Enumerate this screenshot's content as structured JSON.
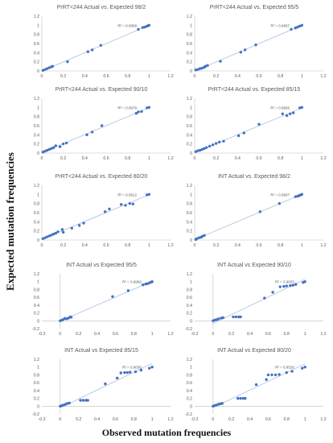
{
  "figure": {
    "ylabel": "Expected mutation frequencies",
    "xlabel": "Observed mutation frequencies"
  },
  "chart_data": [
    {
      "type": "scatter",
      "title": "PrRT<244 Actual vs. Expected 98/2",
      "xlim": [
        0,
        1.2
      ],
      "ylim": [
        0,
        1.2
      ],
      "xticks": [
        "0",
        "0.2",
        "0.4",
        "0.6",
        "0.8",
        "1",
        "1.2"
      ],
      "yticks": [
        "0",
        "0.2",
        "0.4",
        "0.6",
        "0.8",
        "1",
        "1.2"
      ],
      "r2_label": "R² = 0.9999",
      "points": [
        [
          0.01,
          0.01
        ],
        [
          0.03,
          0.03
        ],
        [
          0.05,
          0.05
        ],
        [
          0.07,
          0.07
        ],
        [
          0.09,
          0.09
        ],
        [
          0.1,
          0.1
        ],
        [
          0.24,
          0.2
        ],
        [
          0.43,
          0.42
        ],
        [
          0.47,
          0.46
        ],
        [
          0.55,
          0.56
        ],
        [
          0.9,
          0.91
        ],
        [
          0.94,
          0.95
        ],
        [
          0.96,
          0.96
        ],
        [
          0.98,
          0.98
        ],
        [
          0.99,
          0.99
        ],
        [
          1.0,
          1.0
        ]
      ]
    },
    {
      "type": "scatter",
      "title": "PrRT<244 Actual vs. Expected 95/5",
      "xlim": [
        0,
        1.2
      ],
      "ylim": [
        0,
        1.2
      ],
      "xticks": [
        "0",
        "0.2",
        "0.4",
        "0.6",
        "0.8",
        "1",
        "1.2"
      ],
      "yticks": [
        "0",
        "0.2",
        "0.4",
        "0.6",
        "0.8",
        "1",
        "1.2"
      ],
      "r2_label": "R² = 0.9997",
      "points": [
        [
          0.01,
          0.02
        ],
        [
          0.03,
          0.03
        ],
        [
          0.05,
          0.05
        ],
        [
          0.07,
          0.06
        ],
        [
          0.09,
          0.08
        ],
        [
          0.1,
          0.1
        ],
        [
          0.12,
          0.12
        ],
        [
          0.24,
          0.21
        ],
        [
          0.43,
          0.41
        ],
        [
          0.47,
          0.46
        ],
        [
          0.57,
          0.57
        ],
        [
          0.9,
          0.91
        ],
        [
          0.94,
          0.94
        ],
        [
          0.96,
          0.96
        ],
        [
          0.98,
          0.98
        ],
        [
          1.0,
          1.0
        ]
      ]
    },
    {
      "type": "scatter",
      "title": "PrRT<244 Actual vs. Expected 90/10",
      "xlim": [
        0,
        1.2
      ],
      "ylim": [
        0,
        1.2
      ],
      "xticks": [
        "0",
        "0.2",
        "0.4",
        "0.6",
        "0.8",
        "1",
        "1.2"
      ],
      "yticks": [
        "0",
        "0.2",
        "0.4",
        "0.6",
        "0.8",
        "1",
        "1.2"
      ],
      "r2_label": "R² = 0.9979",
      "points": [
        [
          0.01,
          0.02
        ],
        [
          0.03,
          0.04
        ],
        [
          0.05,
          0.06
        ],
        [
          0.07,
          0.08
        ],
        [
          0.09,
          0.1
        ],
        [
          0.11,
          0.12
        ],
        [
          0.13,
          0.16
        ],
        [
          0.17,
          0.14
        ],
        [
          0.2,
          0.2
        ],
        [
          0.23,
          0.22
        ],
        [
          0.42,
          0.4
        ],
        [
          0.47,
          0.46
        ],
        [
          0.56,
          0.6
        ],
        [
          0.88,
          0.87
        ],
        [
          0.9,
          0.9
        ],
        [
          0.93,
          0.91
        ],
        [
          0.98,
          0.99
        ],
        [
          1.0,
          1.0
        ]
      ]
    },
    {
      "type": "scatter",
      "title": "PrRT<244 Actual vs. Expected 85/15",
      "xlim": [
        0,
        1.2
      ],
      "ylim": [
        0,
        1.2
      ],
      "xticks": [
        "0",
        "0.2",
        "0.4",
        "0.6",
        "0.8",
        "1",
        "1.2"
      ],
      "yticks": [
        "0",
        "0.2",
        "0.4",
        "0.6",
        "0.8",
        "1",
        "1.2"
      ],
      "r2_label": "R² = 0.9956",
      "points": [
        [
          0.01,
          0.03
        ],
        [
          0.03,
          0.05
        ],
        [
          0.05,
          0.06
        ],
        [
          0.07,
          0.08
        ],
        [
          0.09,
          0.1
        ],
        [
          0.11,
          0.12
        ],
        [
          0.14,
          0.15
        ],
        [
          0.17,
          0.18
        ],
        [
          0.2,
          0.21
        ],
        [
          0.23,
          0.24
        ],
        [
          0.27,
          0.26
        ],
        [
          0.41,
          0.38
        ],
        [
          0.46,
          0.44
        ],
        [
          0.6,
          0.63
        ],
        [
          0.82,
          0.86
        ],
        [
          0.86,
          0.82
        ],
        [
          0.89,
          0.86
        ],
        [
          0.92,
          0.88
        ],
        [
          0.98,
          0.99
        ],
        [
          1.0,
          1.0
        ]
      ]
    },
    {
      "type": "scatter",
      "title": "PrRT<244 Actual vs. Expected 80/20",
      "xlim": [
        0,
        1.2
      ],
      "ylim": [
        0,
        1.2
      ],
      "xticks": [
        "0",
        "0.2",
        "0.4",
        "0.6",
        "0.8",
        "1",
        "1.2"
      ],
      "yticks": [
        "0",
        "0.2",
        "0.4",
        "0.6",
        "0.8",
        "1",
        "1.2"
      ],
      "r2_label": "R² = 0.9912",
      "points": [
        [
          0.01,
          0.03
        ],
        [
          0.03,
          0.05
        ],
        [
          0.05,
          0.07
        ],
        [
          0.07,
          0.09
        ],
        [
          0.09,
          0.11
        ],
        [
          0.11,
          0.13
        ],
        [
          0.13,
          0.15
        ],
        [
          0.15,
          0.18
        ],
        [
          0.19,
          0.23
        ],
        [
          0.2,
          0.17
        ],
        [
          0.28,
          0.26
        ],
        [
          0.35,
          0.32
        ],
        [
          0.39,
          0.37
        ],
        [
          0.59,
          0.62
        ],
        [
          0.63,
          0.68
        ],
        [
          0.74,
          0.78
        ],
        [
          0.78,
          0.76
        ],
        [
          0.82,
          0.8
        ],
        [
          0.85,
          0.79
        ],
        [
          0.98,
          0.99
        ],
        [
          1.0,
          1.0
        ]
      ]
    },
    {
      "type": "scatter",
      "title": "INT Actual vs. Expected 98/2",
      "xlim": [
        0,
        1.2
      ],
      "ylim": [
        0,
        1.2
      ],
      "xticks": [
        "0",
        "0.2",
        "0.4",
        "0.6",
        "0.8",
        "1",
        "1.2"
      ],
      "yticks": [
        "0",
        "0.2",
        "0.4",
        "0.6",
        "0.8",
        "1",
        "1.2"
      ],
      "r2_label": "R² = 0.9997",
      "points": [
        [
          0.01,
          0.01
        ],
        [
          0.02,
          0.03
        ],
        [
          0.04,
          0.05
        ],
        [
          0.06,
          0.06
        ],
        [
          0.07,
          0.08
        ],
        [
          0.09,
          0.1
        ],
        [
          0.61,
          0.62
        ],
        [
          0.79,
          0.8
        ],
        [
          0.94,
          0.95
        ],
        [
          0.96,
          0.96
        ],
        [
          0.97,
          0.97
        ],
        [
          0.98,
          0.98
        ],
        [
          0.99,
          0.99
        ],
        [
          1.0,
          1.0
        ]
      ]
    },
    {
      "type": "scatter",
      "title": "INT Actual vs Expected 95/5",
      "xlim": [
        -0.2,
        1.2
      ],
      "ylim": [
        -0.2,
        1.2
      ],
      "xticks": [
        "-0.2",
        "0",
        "0.2",
        "0.4",
        "0.6",
        "0.8",
        "1",
        "1.2"
      ],
      "yticks": [
        "-0.2",
        "0",
        "0.2",
        "0.4",
        "0.6",
        "0.8",
        "1",
        "1.2"
      ],
      "r2_label": "R² = 0.9969",
      "points": [
        [
          0.0,
          0.0
        ],
        [
          0.02,
          0.02
        ],
        [
          0.03,
          0.03
        ],
        [
          0.05,
          0.06
        ],
        [
          0.07,
          0.05
        ],
        [
          0.09,
          0.07
        ],
        [
          0.11,
          0.1
        ],
        [
          0.12,
          0.09
        ],
        [
          0.57,
          0.62
        ],
        [
          0.74,
          0.77
        ],
        [
          0.9,
          0.92
        ],
        [
          0.93,
          0.94
        ],
        [
          0.95,
          0.95
        ],
        [
          0.97,
          0.97
        ],
        [
          0.99,
          0.99
        ],
        [
          1.0,
          1.0
        ]
      ]
    },
    {
      "type": "scatter",
      "title": "INT Actual vs Expected 90/10",
      "xlim": [
        -0.2,
        1.2
      ],
      "ylim": [
        -0.2,
        1.2
      ],
      "xticks": [
        "-0.2",
        "0",
        "0.2",
        "0.4",
        "0.6",
        "0.8",
        "1",
        "1.2"
      ],
      "yticks": [
        "-0.2",
        "0",
        "0.2",
        "0.4",
        "0.6",
        "0.8",
        "1",
        "1.2"
      ],
      "r2_label": "R² = 0.9833",
      "points": [
        [
          0.0,
          0.0
        ],
        [
          0.02,
          0.02
        ],
        [
          0.04,
          0.03
        ],
        [
          0.06,
          0.05
        ],
        [
          0.09,
          0.07
        ],
        [
          0.11,
          0.08
        ],
        [
          0.22,
          0.1
        ],
        [
          0.25,
          0.1
        ],
        [
          0.28,
          0.1
        ],
        [
          0.3,
          0.1
        ],
        [
          0.56,
          0.58
        ],
        [
          0.65,
          0.73
        ],
        [
          0.73,
          0.87
        ],
        [
          0.77,
          0.88
        ],
        [
          0.8,
          0.89
        ],
        [
          0.84,
          0.9
        ],
        [
          0.87,
          0.91
        ],
        [
          0.9,
          0.93
        ],
        [
          0.98,
          0.98
        ],
        [
          1.0,
          1.0
        ]
      ]
    },
    {
      "type": "scatter",
      "title": "INT Actual vs Expected 85/15",
      "xlim": [
        -0.2,
        1.2
      ],
      "ylim": [
        -0.2,
        1.2
      ],
      "xticks": [
        "-0.2",
        "0",
        "0.2",
        "0.4",
        "0.6",
        "0.8",
        "1",
        "1.2"
      ],
      "yticks": [
        "-0.2",
        "0",
        "0.2",
        "0.4",
        "0.6",
        "0.8",
        "1",
        "1.2"
      ],
      "r2_label": "R² = 0.9638",
      "points": [
        [
          0.0,
          0.0
        ],
        [
          0.02,
          0.02
        ],
        [
          0.04,
          0.03
        ],
        [
          0.06,
          0.05
        ],
        [
          0.08,
          0.07
        ],
        [
          0.1,
          0.08
        ],
        [
          0.22,
          0.15
        ],
        [
          0.25,
          0.15
        ],
        [
          0.28,
          0.15
        ],
        [
          0.3,
          0.15
        ],
        [
          0.49,
          0.57
        ],
        [
          0.62,
          0.72
        ],
        [
          0.66,
          0.85
        ],
        [
          0.7,
          0.86
        ],
        [
          0.73,
          0.86
        ],
        [
          0.76,
          0.87
        ],
        [
          0.82,
          0.88
        ],
        [
          0.88,
          0.92
        ],
        [
          0.97,
          0.97
        ],
        [
          1.0,
          1.0
        ]
      ]
    },
    {
      "type": "scatter",
      "title": "INT Actual vs Expected 80/20",
      "xlim": [
        -0.2,
        1.2
      ],
      "ylim": [
        -0.2,
        1.2
      ],
      "xticks": [
        "-0.2",
        "0",
        "0.2",
        "0.4",
        "0.6",
        "0.8",
        "1",
        "1.2"
      ],
      "yticks": [
        "-0.2",
        "0",
        "0.2",
        "0.4",
        "0.6",
        "0.8",
        "1",
        "1.2"
      ],
      "r2_label": "R² = 0.9528",
      "points": [
        [
          0.0,
          0.0
        ],
        [
          0.02,
          0.02
        ],
        [
          0.04,
          0.03
        ],
        [
          0.06,
          0.05
        ],
        [
          0.08,
          0.06
        ],
        [
          0.1,
          0.07
        ],
        [
          0.27,
          0.2
        ],
        [
          0.3,
          0.2
        ],
        [
          0.33,
          0.2
        ],
        [
          0.35,
          0.2
        ],
        [
          0.47,
          0.55
        ],
        [
          0.58,
          0.68
        ],
        [
          0.6,
          0.8
        ],
        [
          0.64,
          0.8
        ],
        [
          0.68,
          0.8
        ],
        [
          0.72,
          0.81
        ],
        [
          0.8,
          0.86
        ],
        [
          0.86,
          0.89
        ],
        [
          0.97,
          0.97
        ],
        [
          1.0,
          1.0
        ]
      ]
    }
  ]
}
